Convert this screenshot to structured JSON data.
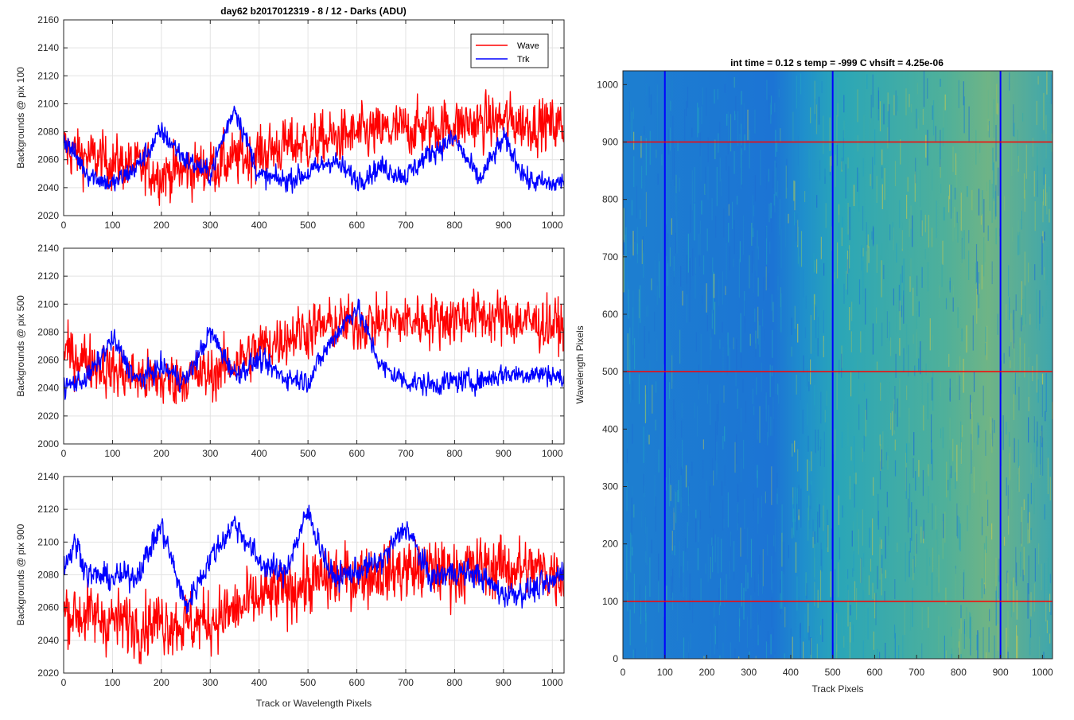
{
  "figure": {
    "left_title": "day62 b2017012319 - 8 / 12 - Darks (ADU)",
    "right_title": "int time = 0.12 s   temp = -999 C   vhsift = 4.25e-06"
  },
  "colors": {
    "wave": "#ff0000",
    "trk": "#0000ff",
    "image_low": "#1f6fd6",
    "image_mid": "#20a3c0",
    "image_high": "#a9c35a"
  },
  "chart_data": [
    {
      "type": "line",
      "title": "day62 b2017012319 - 8 / 12 - Darks (ADU)",
      "xlabel": "",
      "ylabel": "Backgrounds @ pix 100",
      "xlim": [
        0,
        1024
      ],
      "ylim": [
        2020,
        2160
      ],
      "xticks": [
        0,
        100,
        200,
        300,
        400,
        500,
        600,
        700,
        800,
        900,
        1000
      ],
      "yticks": [
        2020,
        2040,
        2060,
        2080,
        2100,
        2120,
        2140,
        2160
      ],
      "grid": true,
      "legend": {
        "placement": "top-right",
        "entries": [
          "Wave",
          "Trk"
        ]
      },
      "series": [
        {
          "name": "Wave",
          "color": "#ff0000",
          "x": [
            0,
            50,
            100,
            150,
            200,
            250,
            300,
            350,
            400,
            450,
            500,
            550,
            600,
            650,
            700,
            750,
            800,
            850,
            900,
            950,
            1000,
            1024
          ],
          "y": [
            2068,
            2062,
            2058,
            2055,
            2050,
            2052,
            2055,
            2060,
            2064,
            2070,
            2072,
            2075,
            2078,
            2080,
            2082,
            2083,
            2085,
            2086,
            2088,
            2086,
            2085,
            2084
          ]
        },
        {
          "name": "Trk",
          "color": "#0000ff",
          "x": [
            0,
            50,
            100,
            150,
            200,
            250,
            300,
            350,
            400,
            450,
            500,
            550,
            600,
            650,
            700,
            750,
            800,
            850,
            900,
            950,
            1000,
            1024
          ],
          "y": [
            2075,
            2050,
            2042,
            2055,
            2080,
            2060,
            2050,
            2098,
            2048,
            2045,
            2050,
            2060,
            2045,
            2055,
            2048,
            2065,
            2075,
            2045,
            2075,
            2045,
            2042,
            2045
          ]
        }
      ]
    },
    {
      "type": "line",
      "title": "",
      "xlabel": "",
      "ylabel": "Backgrounds @ pix 500",
      "xlim": [
        0,
        1024
      ],
      "ylim": [
        2000,
        2140
      ],
      "xticks": [
        0,
        100,
        200,
        300,
        400,
        500,
        600,
        700,
        800,
        900,
        1000
      ],
      "yticks": [
        2000,
        2020,
        2040,
        2060,
        2080,
        2100,
        2120,
        2140
      ],
      "grid": true,
      "series": [
        {
          "name": "Wave",
          "color": "#ff0000",
          "x": [
            0,
            50,
            100,
            150,
            200,
            250,
            300,
            350,
            400,
            450,
            500,
            550,
            600,
            650,
            700,
            750,
            800,
            850,
            900,
            950,
            1000,
            1024
          ],
          "y": [
            2065,
            2060,
            2052,
            2048,
            2045,
            2048,
            2050,
            2058,
            2068,
            2076,
            2082,
            2085,
            2086,
            2087,
            2088,
            2089,
            2090,
            2092,
            2090,
            2087,
            2085,
            2084
          ]
        },
        {
          "name": "Trk",
          "color": "#0000ff",
          "x": [
            0,
            50,
            100,
            150,
            200,
            250,
            300,
            350,
            400,
            450,
            500,
            550,
            600,
            650,
            700,
            750,
            800,
            850,
            900,
            950,
            1000,
            1024
          ],
          "y": [
            2040,
            2048,
            2075,
            2045,
            2055,
            2045,
            2080,
            2050,
            2060,
            2048,
            2045,
            2075,
            2098,
            2055,
            2045,
            2042,
            2045,
            2045,
            2050,
            2050,
            2050,
            2045
          ]
        }
      ]
    },
    {
      "type": "line",
      "title": "",
      "xlabel": "Track or Wavelength Pixels",
      "ylabel": "Backgrounds @ pix 900",
      "xlim": [
        0,
        1024
      ],
      "ylim": [
        2020,
        2140
      ],
      "xticks": [
        0,
        100,
        200,
        300,
        400,
        500,
        600,
        700,
        800,
        900,
        1000
      ],
      "yticks": [
        2020,
        2040,
        2060,
        2080,
        2100,
        2120,
        2140
      ],
      "grid": true,
      "series": [
        {
          "name": "Wave",
          "color": "#ff0000",
          "x": [
            0,
            50,
            100,
            150,
            200,
            250,
            300,
            350,
            400,
            450,
            500,
            550,
            600,
            650,
            700,
            750,
            800,
            850,
            900,
            950,
            1000,
            1024
          ],
          "y": [
            2058,
            2055,
            2052,
            2050,
            2052,
            2050,
            2052,
            2058,
            2065,
            2070,
            2075,
            2078,
            2080,
            2082,
            2083,
            2083,
            2082,
            2084,
            2085,
            2083,
            2082,
            2080
          ]
        },
        {
          "name": "Trk",
          "color": "#0000ff",
          "x": [
            0,
            25,
            50,
            100,
            150,
            200,
            250,
            300,
            350,
            400,
            450,
            500,
            550,
            600,
            650,
            700,
            750,
            800,
            850,
            900,
            950,
            1000,
            1024
          ],
          "y": [
            2085,
            2100,
            2080,
            2078,
            2080,
            2110,
            2060,
            2090,
            2112,
            2088,
            2080,
            2118,
            2078,
            2082,
            2088,
            2110,
            2078,
            2082,
            2080,
            2068,
            2070,
            2075,
            2085
          ]
        }
      ]
    },
    {
      "type": "heatmap",
      "title": "int time = 0.12 s   temp = -999 C   vhsift = 4.25e-06",
      "xlabel": "Track Pixels",
      "ylabel": "Wavelength Pixels",
      "xlim": [
        0,
        1024
      ],
      "ylim": [
        0,
        1024
      ],
      "xticks": [
        0,
        100,
        200,
        300,
        400,
        500,
        600,
        700,
        800,
        900,
        1000
      ],
      "yticks": [
        0,
        100,
        200,
        300,
        400,
        500,
        600,
        700,
        800,
        900,
        1000
      ],
      "row_markers": [
        100,
        500,
        900
      ],
      "column_markers": [
        100,
        500,
        900
      ],
      "row_marker_color": "#ff0000",
      "column_marker_color": "#0000ff"
    }
  ]
}
